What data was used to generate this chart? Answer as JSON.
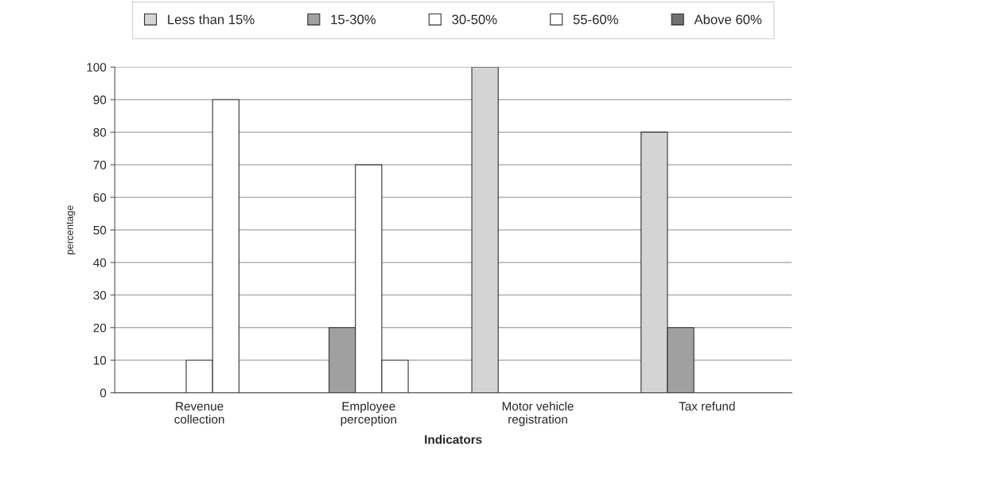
{
  "chart_data": {
    "type": "bar",
    "xlabel": "Indicators",
    "ylabel": "percentage",
    "categories": [
      "Revenue\ncollection",
      "Employee\nperception",
      "Motor vehicle\nregistration",
      "Tax refund"
    ],
    "series": [
      {
        "name": "Less than 15%",
        "color": "#d4d4d4",
        "values": [
          null,
          null,
          100,
          80
        ]
      },
      {
        "name": "15-30%",
        "color": "#a0a0a0",
        "values": [
          null,
          20,
          null,
          20
        ]
      },
      {
        "name": "30-50%",
        "color": "#ffffff",
        "values": [
          10,
          70,
          null,
          null
        ]
      },
      {
        "name": "55-60%",
        "color": "#ffffff",
        "values": [
          90,
          10,
          null,
          null
        ]
      },
      {
        "name": "Above 60%",
        "color": "#707070",
        "values": [
          null,
          null,
          null,
          null
        ]
      }
    ],
    "ylim": [
      0,
      100
    ],
    "yticks": [
      0,
      10,
      20,
      30,
      40,
      50,
      60,
      70,
      80,
      90,
      100
    ],
    "grid": "y",
    "legend": "top"
  }
}
